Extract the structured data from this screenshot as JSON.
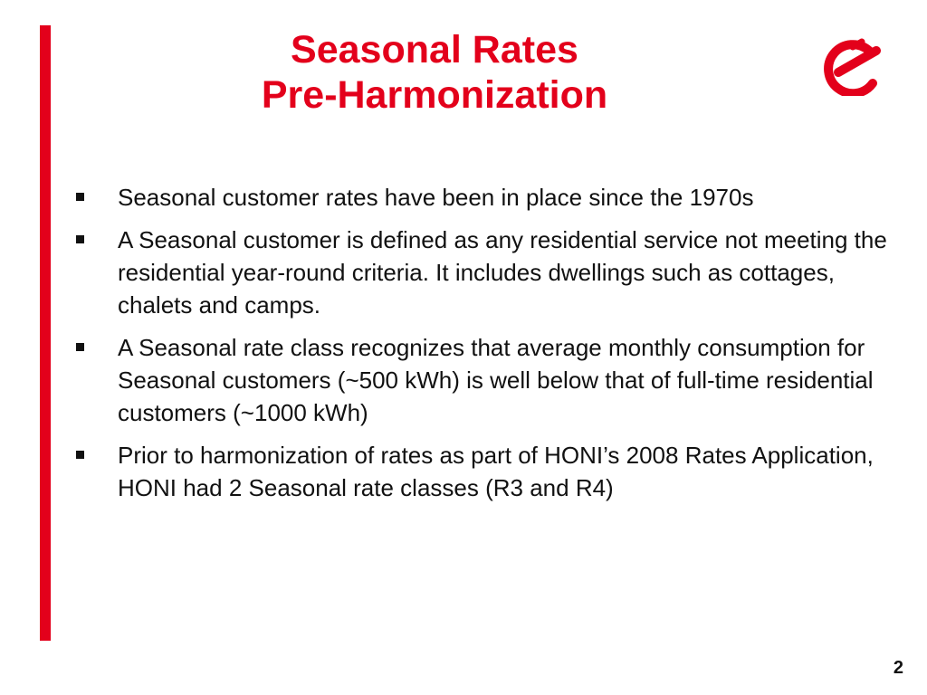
{
  "slide": {
    "title_line1": "Seasonal Rates",
    "title_line2": "Pre-Harmonization",
    "page_number": "2",
    "accent_color": "#e3001b",
    "logo_icon": "brand-logo-icon",
    "bullets": [
      {
        "text": "Seasonal customer rates have been in place since the 1970s"
      },
      {
        "text": "A Seasonal customer is defined as any residential service not meeting the residential year-round criteria. It includes dwellings such as cottages, chalets and camps."
      },
      {
        "text": "A Seasonal rate class recognizes that average monthly consumption for Seasonal customers (~500 kWh) is well below that of full-time residential customers (~1000 kWh)"
      },
      {
        "text": "Prior to harmonization of rates as part of HONI’s 2008 Rates Application, HONI had 2 Seasonal rate classes (R3 and R4)"
      }
    ]
  }
}
